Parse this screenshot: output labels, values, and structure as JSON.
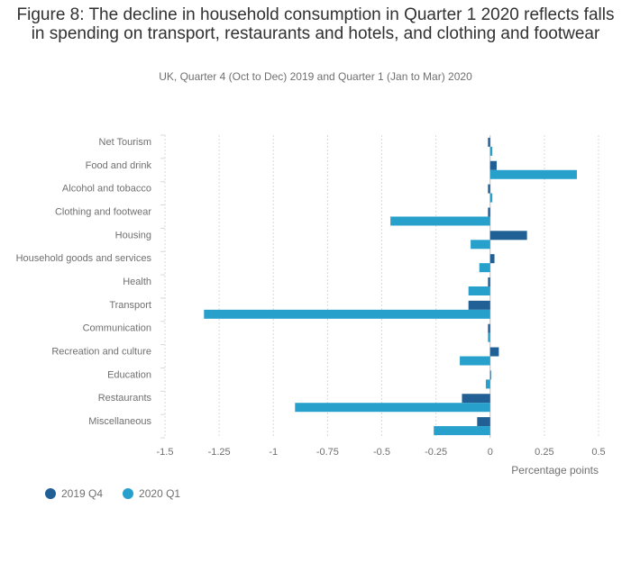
{
  "title": "Figure 8: The decline in household consumption in Quarter 1 2020 reflects falls in spending on transport, restaurants and hotels, and clothing and footwear",
  "subtitle": "UK, Quarter 4 (Oct to Dec) 2019 and Quarter 1 (Jan to Mar) 2020",
  "colors": {
    "q4": "#206095",
    "q1": "#27a0cc",
    "grid": "#d9d9d9",
    "axis": "#707071"
  },
  "chart_data": {
    "type": "bar",
    "orientation": "horizontal",
    "categories": [
      "Net Tourism",
      "Food and drink",
      "Alcohol and tobacco",
      "Clothing and footwear",
      "Housing",
      "Household goods and services",
      "Health",
      "Transport",
      "Communication",
      "Recreation and culture",
      "Education",
      "Restaurants",
      "Miscellaneous"
    ],
    "series": [
      {
        "name": "2019 Q4",
        "values": [
          -0.01,
          0.03,
          -0.01,
          -0.01,
          0.17,
          0.02,
          -0.01,
          -0.1,
          -0.01,
          0.04,
          0.0,
          -0.13,
          -0.06
        ]
      },
      {
        "name": "2020 Q1",
        "values": [
          0.01,
          0.4,
          0.01,
          -0.46,
          -0.09,
          -0.05,
          -0.1,
          -1.32,
          -0.01,
          -0.14,
          -0.02,
          -0.9,
          -0.26
        ]
      }
    ],
    "xlabel": "Percentage points",
    "xlim": [
      -1.5,
      0.5
    ],
    "xticks": [
      -1.5,
      -1.25,
      -1,
      -0.75,
      -0.5,
      -0.25,
      0,
      0.25,
      0.5
    ],
    "xtick_labels": [
      "-1.5",
      "-1.25",
      "-1",
      "-0.75",
      "-0.5",
      "-0.25",
      "0",
      "0.25",
      "0.5"
    ],
    "grid": true,
    "legend_position": "bottom-left"
  }
}
